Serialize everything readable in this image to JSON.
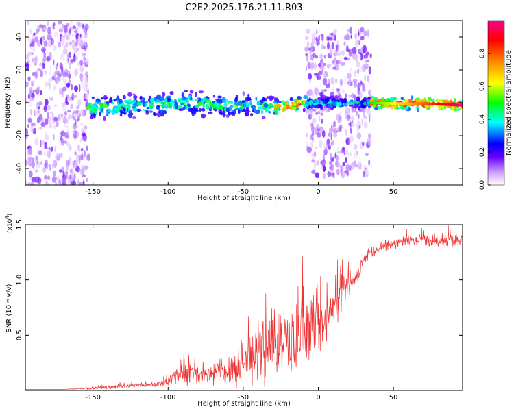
{
  "chart_data": [
    {
      "type": "heatmap",
      "title": "C2E2.2025.176.21.11.R03",
      "xlabel": "Height of straight line (km)",
      "ylabel": "Frequency (Hz)",
      "xlim": [
        -195,
        96
      ],
      "ylim": [
        -50,
        50
      ],
      "xticks": [
        -150,
        -100,
        -50,
        0,
        50
      ],
      "yticks": [
        -40,
        -20,
        0,
        20,
        40
      ],
      "colorbar": {
        "label": "Normalized spectral amplitude",
        "range": [
          0,
          1
        ],
        "ticks": [
          "0.0",
          "0.2",
          "0.4",
          "0.6",
          "0.8"
        ],
        "colors": [
          "#ffffff",
          "#cc99ff",
          "#6600ff",
          "#0000ff",
          "#00ffff",
          "#00ff00",
          "#ffff00",
          "#ff8800",
          "#ff0000",
          "#ff0088"
        ]
      },
      "regions": [
        {
          "x": [
            -195,
            -153
          ],
          "freq": [
            -50,
            50
          ],
          "amplitude": 0.15,
          "pattern": "scattered"
        },
        {
          "x": [
            -153,
            -30
          ],
          "freq": [
            -8,
            8
          ],
          "amplitude": 0.45,
          "pattern": "band"
        },
        {
          "x": [
            -30,
            -5
          ],
          "freq": [
            -5,
            5
          ],
          "amplitude": 0.7,
          "pattern": "band"
        },
        {
          "x": [
            -8,
            35
          ],
          "freq": [
            -45,
            45
          ],
          "amplitude": 0.15,
          "pattern": "scattered"
        },
        {
          "x": [
            -8,
            35
          ],
          "freq": [
            -4,
            4
          ],
          "amplitude": 0.4,
          "pattern": "band"
        },
        {
          "x": [
            35,
            96
          ],
          "freq": [
            -4,
            4
          ],
          "amplitude": 0.85,
          "pattern": "band"
        }
      ],
      "ridge": [
        [
          -153,
          -3
        ],
        [
          -120,
          -2
        ],
        [
          -90,
          0
        ],
        [
          -60,
          -2
        ],
        [
          -45,
          -1
        ],
        [
          -30,
          -3
        ],
        [
          -20,
          -2
        ],
        [
          -10,
          0
        ],
        [
          0,
          0
        ],
        [
          20,
          0
        ],
        [
          35,
          0
        ],
        [
          50,
          -0.5
        ],
        [
          70,
          -0.5
        ],
        [
          96,
          -1.5
        ]
      ]
    },
    {
      "type": "line",
      "xlabel": "Height of straight line (km)",
      "ylabel": "SNR (10 * v/v)",
      "y_multiplier": "(x10",
      "y_multiplier_exp": "4",
      "y_multiplier_close": ")",
      "xlim": [
        -195,
        96
      ],
      "ylim": [
        0,
        1.5
      ],
      "xticks": [
        -150,
        -100,
        -50,
        0,
        50
      ],
      "yticks": [
        "0.5",
        "1.0",
        "1.5"
      ],
      "ytick_values": [
        0.5,
        1.0,
        1.5
      ],
      "color": "#ee3333",
      "x": [
        -195,
        -170,
        -160,
        -150,
        -140,
        -130,
        -120,
        -110,
        -105,
        -100,
        -95,
        -90,
        -85,
        -80,
        -75,
        -70,
        -65,
        -60,
        -55,
        -50,
        -45,
        -40,
        -35,
        -30,
        -25,
        -20,
        -15,
        -10,
        -5,
        0,
        5,
        10,
        15,
        20,
        25,
        30,
        35,
        40,
        45,
        50,
        55,
        60,
        65,
        70,
        75,
        80,
        85,
        90,
        96
      ],
      "y": [
        0.01,
        0.01,
        0.015,
        0.02,
        0.03,
        0.04,
        0.05,
        0.05,
        0.06,
        0.08,
        0.14,
        0.15,
        0.16,
        0.14,
        0.12,
        0.15,
        0.18,
        0.2,
        0.22,
        0.26,
        0.3,
        0.34,
        0.36,
        0.38,
        0.42,
        0.44,
        0.46,
        0.5,
        0.54,
        0.6,
        0.6,
        0.72,
        0.92,
        0.95,
        1.0,
        1.18,
        1.24,
        1.28,
        1.31,
        1.33,
        1.34,
        1.35,
        1.35,
        1.36,
        1.36,
        1.36,
        1.36,
        1.37,
        1.37
      ],
      "noise": [
        0,
        0,
        0.005,
        0.01,
        0.02,
        0.02,
        0.02,
        0.02,
        0.03,
        0.05,
        0.08,
        0.1,
        0.12,
        0.11,
        0.1,
        0.12,
        0.14,
        0.16,
        0.18,
        0.2,
        0.22,
        0.26,
        0.28,
        0.3,
        0.32,
        0.34,
        0.34,
        0.32,
        0.3,
        0.24,
        0.22,
        0.26,
        0.2,
        0.1,
        0.06,
        0.05,
        0.05,
        0.05,
        0.05,
        0.05,
        0.05,
        0.05,
        0.06,
        0.06,
        0.06,
        0.06,
        0.06,
        0.07,
        0.07
      ]
    }
  ]
}
